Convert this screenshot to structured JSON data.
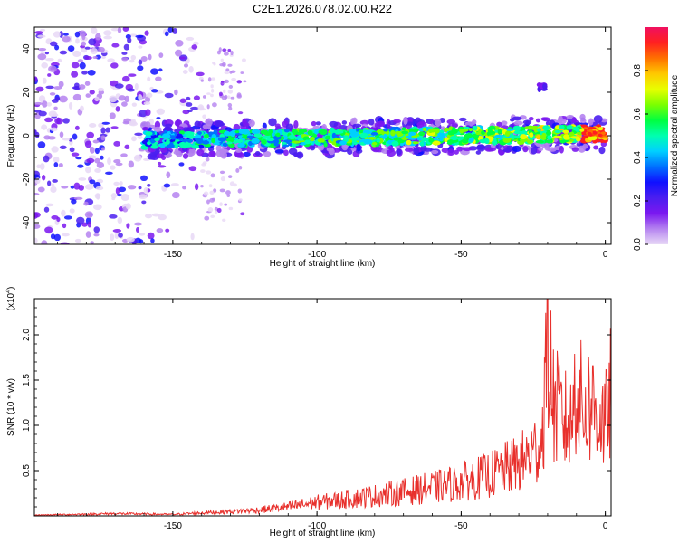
{
  "title": "C2E1.2026.078.02.00.R22",
  "chart_data": [
    {
      "type": "heatmap",
      "name": "spectrogram",
      "xlabel": "Height of straight line (km)",
      "ylabel": "Frequency (Hz)",
      "xlim": [
        -198,
        2
      ],
      "ylim": [
        -50,
        50
      ],
      "xticks": [
        -150,
        -100,
        -50,
        0
      ],
      "yticks": [
        -40,
        -20,
        0,
        20,
        40
      ],
      "colorbar": {
        "label": "Normalized spectral amplitude",
        "range": [
          0,
          1
        ],
        "ticks": [
          0.0,
          0.2,
          0.4,
          0.6,
          0.8
        ],
        "colormap": [
          "#e8d8f6",
          "#b583f0",
          "#7b18f0",
          "#4b1ef0",
          "#1010ff",
          "#0070ff",
          "#00d0ff",
          "#00ffb0",
          "#00ff40",
          "#7cff00",
          "#e8ff00",
          "#ffc800",
          "#ff7000",
          "#ff2020",
          "#f01060"
        ]
      },
      "features": {
        "main_band": {
          "height_range": [
            -160,
            0
          ],
          "freq_at_start": -2,
          "freq_at_end": 1,
          "peak_amplitude": 0.95
        },
        "noise_region": {
          "height_range": [
            -198,
            -140
          ],
          "freq_range": [
            -50,
            50
          ]
        },
        "echo_patch": {
          "height": -22,
          "freq": 22
        }
      }
    },
    {
      "type": "line",
      "name": "snr",
      "xlabel": "Height of straight line (km)",
      "ylabel": "SNR (10 * v/v)",
      "y_multiplier": "(x10",
      "y_multiplier_exp": "4",
      "xlim": [
        -198,
        2
      ],
      "ylim": [
        0,
        2.4
      ],
      "xticks": [
        -150,
        -100,
        -50,
        0
      ],
      "yticks": [
        0.5,
        1.0,
        1.5,
        2.0
      ],
      "ytick_labels": [
        "0.5",
        "1.0",
        "1.5",
        "2.0"
      ],
      "color": "#e8302c",
      "series": [
        {
          "name": "SNR",
          "x": [
            -198,
            -170,
            -150,
            -135,
            -120,
            -110,
            -100,
            -90,
            -80,
            -70,
            -60,
            -50,
            -40,
            -30,
            -25,
            -22,
            -20,
            -18,
            -15,
            -12,
            -10,
            -8,
            -5,
            -3,
            -1,
            0,
            2
          ],
          "values": [
            0.01,
            0.03,
            0.02,
            0.05,
            0.08,
            0.12,
            0.18,
            0.22,
            0.27,
            0.32,
            0.38,
            0.45,
            0.55,
            0.7,
            0.85,
            1.0,
            2.38,
            1.5,
            1.3,
            1.2,
            1.86,
            1.4,
            1.5,
            1.4,
            1.3,
            1.2,
            1.7
          ]
        }
      ]
    }
  ]
}
